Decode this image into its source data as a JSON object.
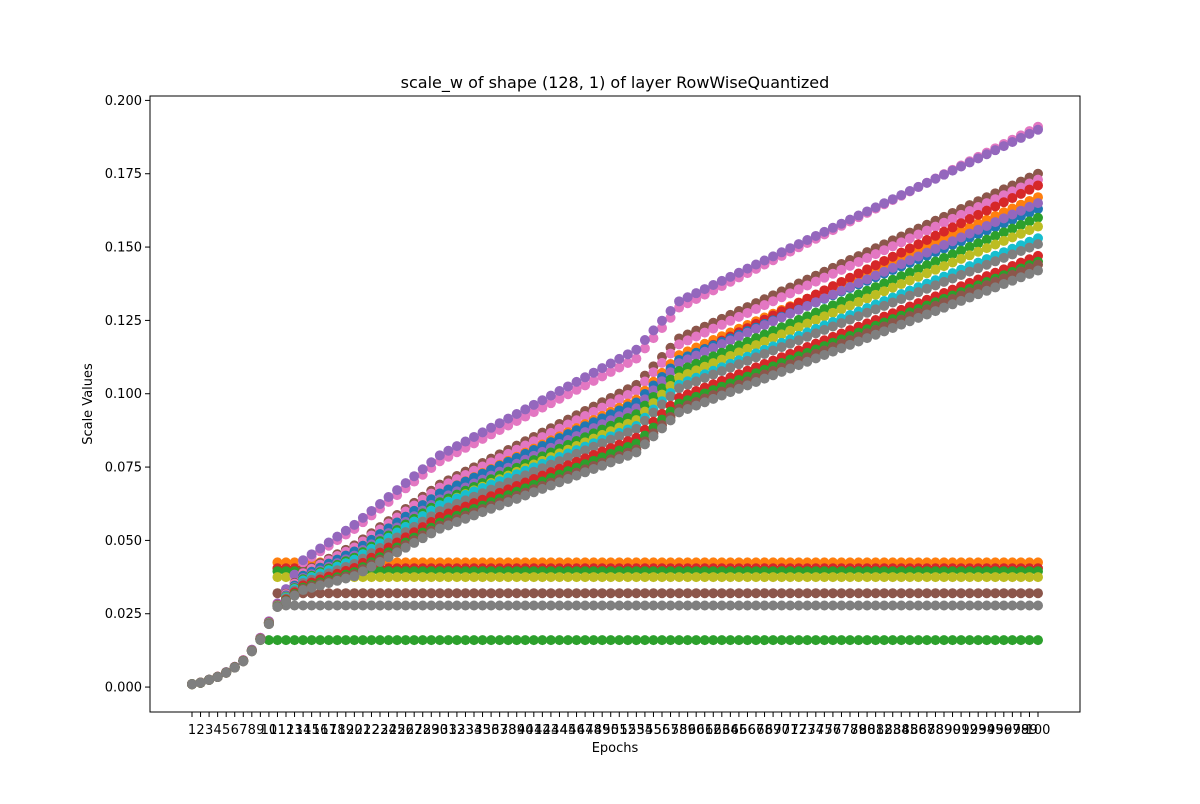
{
  "chart_data": {
    "type": "scatter",
    "title": "scale_w of shape (128, 1) of layer RowWiseQuantized",
    "xlabel": "Epochs",
    "ylabel": "Scale Values",
    "x": [
      1,
      2,
      3,
      4,
      5,
      6,
      7,
      8,
      9,
      10,
      11,
      12,
      13,
      14,
      15,
      16,
      17,
      18,
      19,
      20,
      21,
      22,
      23,
      24,
      25,
      26,
      27,
      28,
      29,
      30,
      31,
      32,
      33,
      34,
      35,
      36,
      37,
      38,
      39,
      40,
      41,
      42,
      43,
      44,
      45,
      46,
      47,
      48,
      49,
      50,
      51,
      52,
      53,
      54,
      55,
      56,
      57,
      58,
      59,
      60,
      61,
      62,
      63,
      64,
      65,
      66,
      67,
      68,
      69,
      70,
      71,
      72,
      73,
      74,
      75,
      76,
      77,
      78,
      79,
      80,
      81,
      82,
      83,
      84,
      85,
      86,
      87,
      88,
      89,
      90,
      91,
      92,
      93,
      94,
      95,
      96,
      97,
      98,
      99,
      100
    ],
    "x_tick_labels": [
      "1",
      "2",
      "3",
      "4",
      "5",
      "6",
      "7",
      "8",
      "9",
      "10",
      "11",
      "12",
      "13",
      "14",
      "15",
      "16",
      "17",
      "18",
      "19",
      "20",
      "21",
      "22",
      "23",
      "24",
      "25",
      "26",
      "27",
      "28",
      "29",
      "30",
      "31",
      "32",
      "33",
      "34",
      "35",
      "36",
      "37",
      "38",
      "39",
      "40",
      "41",
      "42",
      "43",
      "44",
      "45",
      "46",
      "47",
      "48",
      "49",
      "50",
      "51",
      "52",
      "53",
      "54",
      "55",
      "56",
      "57",
      "58",
      "59",
      "60",
      "61",
      "62",
      "63",
      "64",
      "65",
      "66",
      "67",
      "68",
      "69",
      "70",
      "71",
      "72",
      "73",
      "74",
      "75",
      "76",
      "77",
      "78",
      "79",
      "80",
      "81",
      "82",
      "83",
      "84",
      "85",
      "86",
      "87",
      "88",
      "89",
      "90",
      "91",
      "92",
      "93",
      "94",
      "95",
      "96",
      "97",
      "98",
      "99",
      "100"
    ],
    "y_ticks": [
      "0.000",
      "0.025",
      "0.050",
      "0.075",
      "0.100",
      "0.125",
      "0.150",
      "0.175",
      "0.200"
    ],
    "ylim": [
      -0.0085,
      0.2015
    ],
    "grid": false,
    "legend": "none",
    "growing_series": [
      {
        "color": "#e377c2",
        "final": 0.191,
        "mid": 0.112,
        "early": 0.077
      },
      {
        "color": "#9467bd",
        "final": 0.19,
        "mid": 0.115,
        "early": 0.079
      },
      {
        "color": "#8c564b",
        "final": 0.175,
        "mid": 0.103,
        "early": 0.069
      },
      {
        "color": "#e377c2",
        "final": 0.173,
        "mid": 0.101,
        "early": 0.068
      },
      {
        "color": "#ff7f0e",
        "final": 0.167,
        "mid": 0.098,
        "early": 0.066
      },
      {
        "color": "#d62728",
        "final": 0.171,
        "mid": 0.094,
        "early": 0.062
      },
      {
        "color": "#1f77b4",
        "final": 0.163,
        "mid": 0.097,
        "early": 0.066
      },
      {
        "color": "#9467bd",
        "final": 0.165,
        "mid": 0.095,
        "early": 0.064
      },
      {
        "color": "#2ca02c",
        "final": 0.16,
        "mid": 0.093,
        "early": 0.063
      },
      {
        "color": "#bcbd22",
        "final": 0.157,
        "mid": 0.091,
        "early": 0.062
      },
      {
        "color": "#17becf",
        "final": 0.153,
        "mid": 0.089,
        "early": 0.062
      },
      {
        "color": "#7f7f7f",
        "final": 0.151,
        "mid": 0.088,
        "early": 0.06
      },
      {
        "color": "#d62728",
        "final": 0.147,
        "mid": 0.085,
        "early": 0.058
      },
      {
        "color": "#2ca02c",
        "final": 0.145,
        "mid": 0.083,
        "early": 0.056
      },
      {
        "color": "#8c564b",
        "final": 0.144,
        "mid": 0.081,
        "early": 0.055
      },
      {
        "color": "#7f7f7f",
        "final": 0.142,
        "mid": 0.08,
        "early": 0.054
      }
    ],
    "flat_series": [
      {
        "color": "#ff7f0e",
        "value": 0.0425
      },
      {
        "color": "#d62728",
        "value": 0.0405
      },
      {
        "color": "#2ca02c",
        "value": 0.0395
      },
      {
        "color": "#bcbd22",
        "value": 0.0375
      },
      {
        "color": "#8c564b",
        "value": 0.032
      },
      {
        "color": "#7f7f7f",
        "value": 0.0278
      },
      {
        "color": "#2ca02c",
        "value": 0.016
      }
    ]
  }
}
